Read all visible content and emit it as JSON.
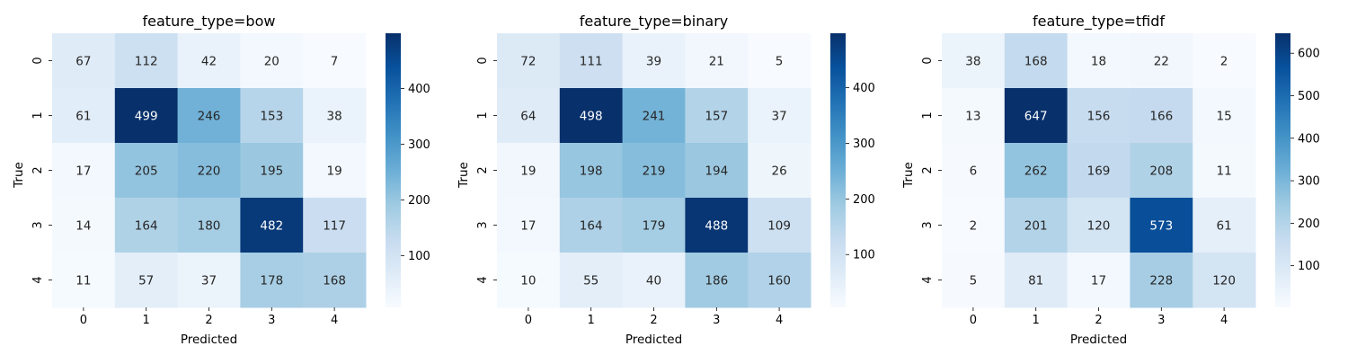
{
  "chart_data": [
    {
      "type": "heatmap",
      "title": "feature_type=bow",
      "xlabel": "Predicted",
      "ylabel": "True",
      "x_categories": [
        "0",
        "1",
        "2",
        "3",
        "4"
      ],
      "y_categories": [
        "0",
        "1",
        "2",
        "3",
        "4"
      ],
      "values": [
        [
          67,
          112,
          42,
          20,
          7
        ],
        [
          61,
          499,
          246,
          153,
          38
        ],
        [
          17,
          205,
          220,
          195,
          19
        ],
        [
          14,
          164,
          180,
          482,
          117
        ],
        [
          11,
          57,
          37,
          178,
          168
        ]
      ],
      "colormap": "Blues",
      "colorbar": {
        "ticks": [
          100,
          200,
          300,
          400
        ],
        "range": [
          7,
          499
        ]
      },
      "grid": false
    },
    {
      "type": "heatmap",
      "title": "feature_type=binary",
      "xlabel": "Predicted",
      "ylabel": "True",
      "x_categories": [
        "0",
        "1",
        "2",
        "3",
        "4"
      ],
      "y_categories": [
        "0",
        "1",
        "2",
        "3",
        "4"
      ],
      "values": [
        [
          72,
          111,
          39,
          21,
          5
        ],
        [
          64,
          498,
          241,
          157,
          37
        ],
        [
          19,
          198,
          219,
          194,
          26
        ],
        [
          17,
          164,
          179,
          488,
          109
        ],
        [
          10,
          55,
          40,
          186,
          160
        ]
      ],
      "colormap": "Blues",
      "colorbar": {
        "ticks": [
          100,
          200,
          300,
          400
        ],
        "range": [
          5,
          498
        ]
      },
      "grid": false
    },
    {
      "type": "heatmap",
      "title": "feature_type=tfidf",
      "xlabel": "Predicted",
      "ylabel": "True",
      "x_categories": [
        "0",
        "1",
        "2",
        "3",
        "4"
      ],
      "y_categories": [
        "0",
        "1",
        "2",
        "3",
        "4"
      ],
      "values": [
        [
          38,
          168,
          18,
          22,
          2
        ],
        [
          13,
          647,
          156,
          166,
          15
        ],
        [
          6,
          262,
          169,
          208,
          11
        ],
        [
          2,
          201,
          120,
          573,
          61
        ],
        [
          5,
          81,
          17,
          228,
          120
        ]
      ],
      "colormap": "Blues",
      "colorbar": {
        "ticks": [
          100,
          200,
          300,
          400,
          500,
          600
        ],
        "range": [
          2,
          647
        ]
      },
      "grid": false
    }
  ]
}
